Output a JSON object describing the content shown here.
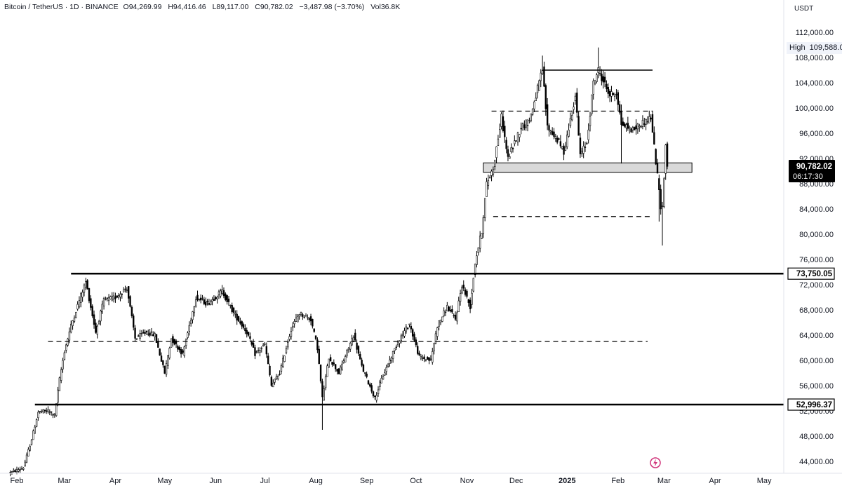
{
  "header": {
    "symbol": "Bitcoin / TetherUS · 1D · BINANCE",
    "open": "O94,269.99",
    "high": "H94,416.46",
    "low": "L89,117.00",
    "close": "C90,782.02",
    "change": "−3,487.98 (−3.70%)",
    "volume": "Vol36.8K"
  },
  "price_axis": {
    "currency": "USDT"
  },
  "high_marker": {
    "label": "High",
    "value": "109,588.00"
  },
  "colors": {
    "line": "#000000",
    "text": "#131722",
    "zone_fill": "#d9d9d9",
    "last_price_bg": "#000000",
    "flash_icon": "#d0337a"
  },
  "icons": {
    "flash": "lightning-bolt-icon"
  },
  "chart_data": {
    "type": "candlestick",
    "title": "Bitcoin / TetherUS · 1D · BINANCE",
    "ylim": [
      42500,
      114500
    ],
    "y_ticks": [
      44000,
      48000,
      52000,
      56000,
      60000,
      64000,
      68000,
      72000,
      76000,
      80000,
      84000,
      88000,
      92000,
      96000,
      100000,
      104000,
      108000,
      112000
    ],
    "y_tick_labels": [
      "44,000.00",
      "48,000.00",
      "52,000.00",
      "56,000.00",
      "60,000.00",
      "64,000.00",
      "68,000.00",
      "72,000.00",
      "76,000.00",
      "80,000.00",
      "84,000.00",
      "88,000.00",
      "92,000.00",
      "96,000.00",
      "100,000.00",
      "104,000.00",
      "108,000.00",
      "112,000.00"
    ],
    "x_tick_labels": [
      "Feb",
      "Mar",
      "Apr",
      "May",
      "Jun",
      "Jul",
      "Aug",
      "Sep",
      "Oct",
      "Nov",
      "Dec",
      "2025",
      "Feb",
      "Mar",
      "Apr",
      "May"
    ],
    "x_tick_dates": [
      "2024-02-01",
      "2024-03-01",
      "2024-04-01",
      "2024-05-01",
      "2024-06-01",
      "2024-07-01",
      "2024-08-01",
      "2024-09-01",
      "2024-10-01",
      "2024-11-01",
      "2024-12-01",
      "2025-01-01",
      "2025-02-01",
      "2025-03-01",
      "2025-04-01",
      "2025-05-01"
    ],
    "grid": false,
    "last_price": {
      "value": 90782.02,
      "label": "90,782.02",
      "countdown": "06:17:30"
    },
    "levels": [
      {
        "price": 73750.05,
        "label": "73,750.05",
        "style": "solid",
        "from": "2024-03-05",
        "to": "2025-05-31"
      },
      {
        "price": 52996.37,
        "label": "52,996.37",
        "style": "solid",
        "from": "2024-02-12",
        "to": "2025-05-31"
      },
      {
        "price": 106000,
        "style": "solid",
        "from": "2024-12-17",
        "to": "2025-02-22"
      },
      {
        "price": 99500,
        "style": "dashed",
        "from": "2024-11-16",
        "to": "2025-02-22"
      },
      {
        "price": 82800,
        "style": "dashed",
        "from": "2024-11-17",
        "to": "2025-02-22"
      },
      {
        "price": 63000,
        "style": "dashed",
        "from": "2024-02-20",
        "to": "2025-02-19"
      }
    ],
    "zone": {
      "from": "2024-11-11",
      "to": "2025-03-18",
      "low": 89800,
      "high": 91300
    },
    "price_path": [
      [
        "2024-01-28",
        42200
      ],
      [
        "2024-02-05",
        43000
      ],
      [
        "2024-02-10",
        47500
      ],
      [
        "2024-02-14",
        51800
      ],
      [
        "2024-02-20",
        52000
      ],
      [
        "2024-02-24",
        51300
      ],
      [
        "2024-02-27",
        57000
      ],
      [
        "2024-03-01",
        61500
      ],
      [
        "2024-03-05",
        65500
      ],
      [
        "2024-03-10",
        69500
      ],
      [
        "2024-03-14",
        72500
      ],
      [
        "2024-03-20",
        64500
      ],
      [
        "2024-03-25",
        69500
      ],
      [
        "2024-04-01",
        70000
      ],
      [
        "2024-04-08",
        71500
      ],
      [
        "2024-04-13",
        63500
      ],
      [
        "2024-04-20",
        64500
      ],
      [
        "2024-04-25",
        64000
      ],
      [
        "2024-05-01",
        58000
      ],
      [
        "2024-05-05",
        63500
      ],
      [
        "2024-05-12",
        61000
      ],
      [
        "2024-05-20",
        70000
      ],
      [
        "2024-05-27",
        69000
      ],
      [
        "2024-06-05",
        71000
      ],
      [
        "2024-06-12",
        67500
      ],
      [
        "2024-06-20",
        64500
      ],
      [
        "2024-06-25",
        61000
      ],
      [
        "2024-07-01",
        62500
      ],
      [
        "2024-07-05",
        56000
      ],
      [
        "2024-07-10",
        58000
      ],
      [
        "2024-07-17",
        65000
      ],
      [
        "2024-07-22",
        67500
      ],
      [
        "2024-07-29",
        66500
      ],
      [
        "2024-08-02",
        62000
      ],
      [
        "2024-08-05",
        54000
      ],
      [
        "2024-08-09",
        60500
      ],
      [
        "2024-08-15",
        58000
      ],
      [
        "2024-08-24",
        64000
      ],
      [
        "2024-08-29",
        59000
      ],
      [
        "2024-09-06",
        54000
      ],
      [
        "2024-09-10",
        57000
      ],
      [
        "2024-09-20",
        63000
      ],
      [
        "2024-09-27",
        65800
      ],
      [
        "2024-10-03",
        60500
      ],
      [
        "2024-10-10",
        60000
      ],
      [
        "2024-10-14",
        65500
      ],
      [
        "2024-10-20",
        68500
      ],
      [
        "2024-10-25",
        66500
      ],
      [
        "2024-10-29",
        72000
      ],
      [
        "2024-11-03",
        68500
      ],
      [
        "2024-11-06",
        75500
      ],
      [
        "2024-11-10",
        80500
      ],
      [
        "2024-11-13",
        88000
      ],
      [
        "2024-11-17",
        90500
      ],
      [
        "2024-11-22",
        98500
      ],
      [
        "2024-11-26",
        92000
      ],
      [
        "2024-12-04",
        97000
      ],
      [
        "2024-12-09",
        98000
      ],
      [
        "2024-12-17",
        106000
      ],
      [
        "2024-12-20",
        97000
      ],
      [
        "2024-12-26",
        95000
      ],
      [
        "2024-12-30",
        93000
      ],
      [
        "2025-01-06",
        102000
      ],
      [
        "2025-01-09",
        92500
      ],
      [
        "2025-01-13",
        94500
      ],
      [
        "2025-01-17",
        104000
      ],
      [
        "2025-01-20",
        106000
      ],
      [
        "2025-01-27",
        102000
      ],
      [
        "2025-01-31",
        102500
      ],
      [
        "2025-02-03",
        97500
      ],
      [
        "2025-02-10",
        96500
      ],
      [
        "2025-02-15",
        97500
      ],
      [
        "2025-02-21",
        98500
      ],
      [
        "2025-02-24",
        91500
      ],
      [
        "2025-02-27",
        84500
      ],
      [
        "2025-02-28",
        84200
      ],
      [
        "2025-03-02",
        94200
      ],
      [
        "2025-03-03",
        90782
      ]
    ],
    "wicks": [
      [
        "2024-08-05",
        49000
      ],
      [
        "2024-12-17",
        108300
      ],
      [
        "2025-01-20",
        109588
      ],
      [
        "2025-02-03",
        91200
      ],
      [
        "2025-02-28",
        78200
      ],
      [
        "2025-02-26",
        82000
      ]
    ]
  }
}
